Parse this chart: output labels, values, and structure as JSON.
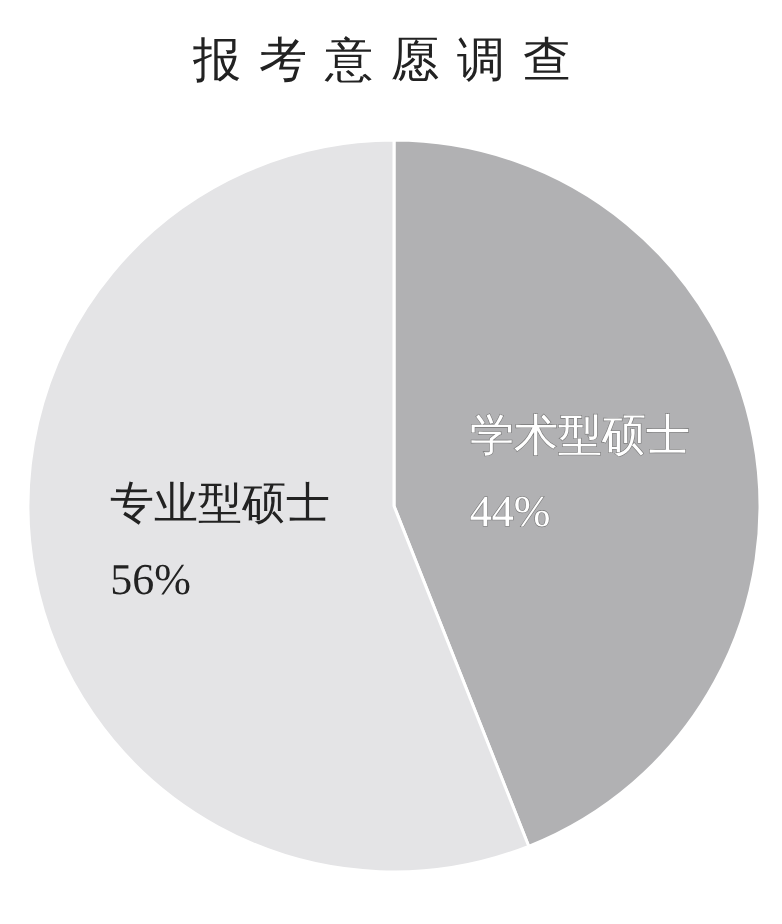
{
  "chart_data": {
    "type": "pie",
    "title": "报考意愿调查",
    "categories": [
      "学术型硕士",
      "专业型硕士"
    ],
    "values": [
      44,
      56
    ],
    "colors": [
      "#b1b1b3",
      "#e4e4e6"
    ],
    "value_labels": [
      "44%",
      "56%"
    ]
  }
}
